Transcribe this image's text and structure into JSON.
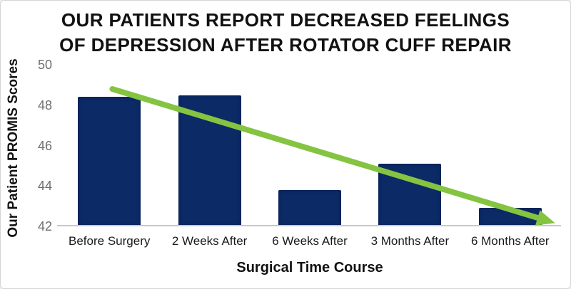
{
  "chart_data": {
    "type": "bar",
    "title_line1": "OUR PATIENTS REPORT DECREASED FEELINGS",
    "title_line2": "OF DEPRESSION AFTER ROTATOR CUFF REPAIR",
    "xlabel": "Surgical Time Course",
    "ylabel": "Our Patient PROMIS Scores",
    "categories": [
      "Before Surgery",
      "2 Weeks After",
      "6 Weeks After",
      "3 Months After",
      "6 Months After"
    ],
    "values": [
      48.4,
      48.5,
      43.8,
      45.1,
      42.9
    ],
    "ylim": [
      42,
      50
    ],
    "yticks": [
      50,
      48,
      46,
      44,
      42
    ],
    "grid": false,
    "legend": "none",
    "annotation": {
      "kind": "decreasing-trend-arrow",
      "start_index": 0.03,
      "start_value": 48.8,
      "end_index": 4.29,
      "end_value": 42.4
    }
  },
  "colors": {
    "bar_navy": "#0b2a66",
    "trend_green": "#84c441",
    "axis_line_gray": "#c8c8c8",
    "tick_text_gray": "#6e6e6e",
    "title_black": "#111111",
    "border_gray": "#d5d5d5",
    "background": "#ffffff"
  }
}
